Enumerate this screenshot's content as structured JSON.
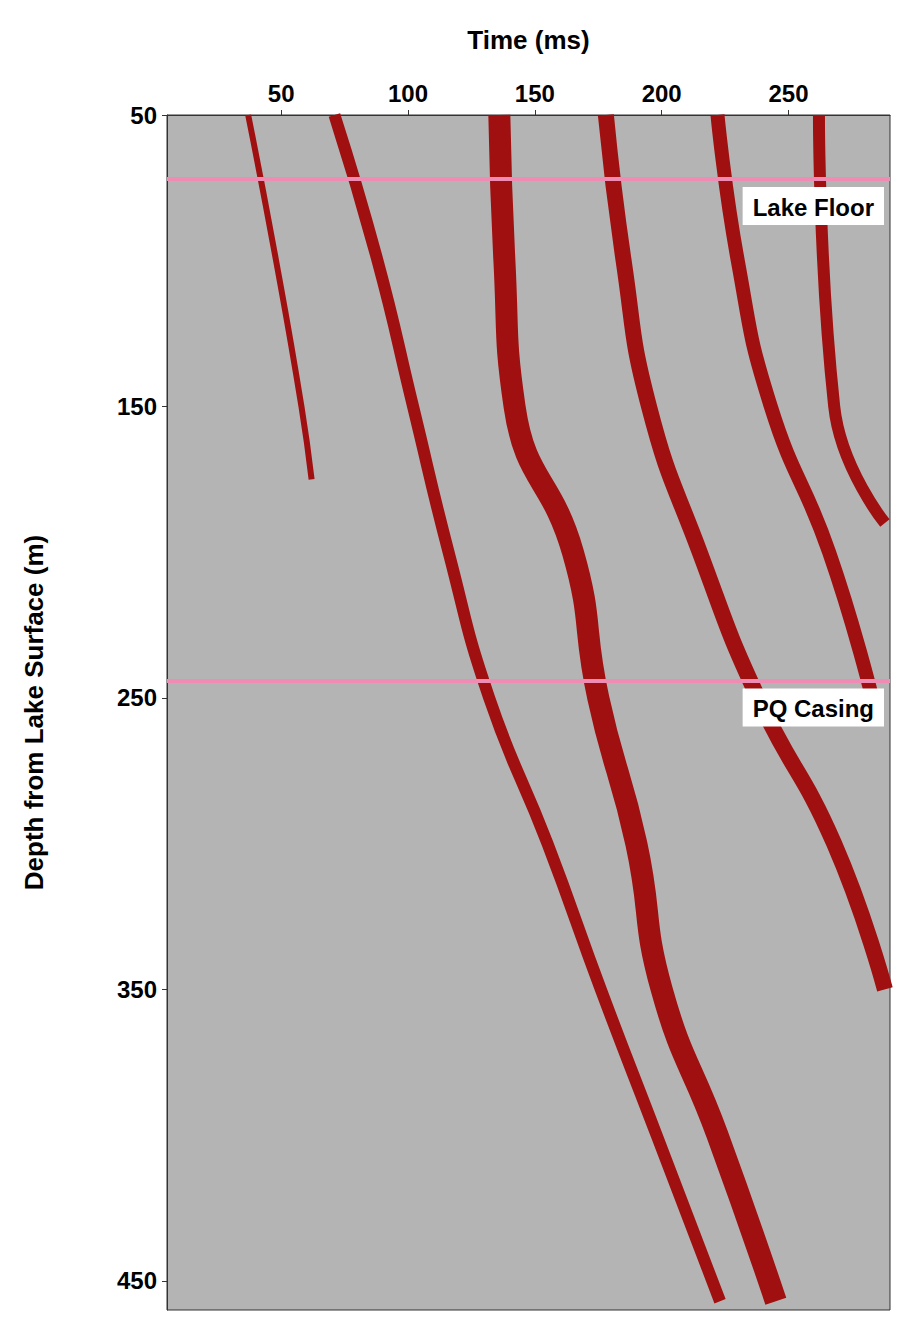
{
  "chart_data": {
    "type": "line",
    "x_label": "Time (ms)",
    "y_label": "Depth from Lake Surface (m)",
    "xlim": [
      5,
      290
    ],
    "xticks": [
      50,
      100,
      150,
      200,
      250
    ],
    "ylim": [
      50,
      460
    ],
    "yticks": [
      50,
      150,
      250,
      350,
      450
    ],
    "grid": false,
    "series": [
      {
        "color": "#a01010",
        "x": [
          37,
          48,
          58,
          62
        ],
        "values": [
          50,
          100,
          150,
          175
        ]
      },
      {
        "color": "#a01010",
        "x": [
          71,
          88,
          102,
          116,
          132,
          155,
          176,
          198,
          223
        ],
        "values": [
          50,
          100,
          150,
          200,
          250,
          300,
          350,
          400,
          457
        ]
      },
      {
        "color": "#a01010",
        "x": [
          136,
          138,
          142,
          165,
          175,
          190,
          200,
          222,
          245
        ],
        "values": [
          50,
          100,
          150,
          200,
          250,
          300,
          350,
          400,
          457
        ]
      },
      {
        "color": "#a01010",
        "x": [
          178,
          185,
          195,
          215,
          238,
          268,
          288
        ],
        "values": [
          50,
          100,
          150,
          200,
          250,
          300,
          350
        ]
      },
      {
        "color": "#a01010",
        "x": [
          222,
          230,
          243,
          266,
          283
        ],
        "values": [
          50,
          100,
          150,
          200,
          250
        ]
      },
      {
        "color": "#a01010",
        "x": [
          262,
          268,
          288
        ],
        "values": [
          50,
          150,
          190
        ]
      }
    ],
    "annotations": [
      {
        "text": "Lake Floor",
        "y": 72,
        "color": "#f08cb4"
      },
      {
        "text": "PQ Casing",
        "y": 244,
        "color": "#f08cb4"
      }
    ]
  }
}
